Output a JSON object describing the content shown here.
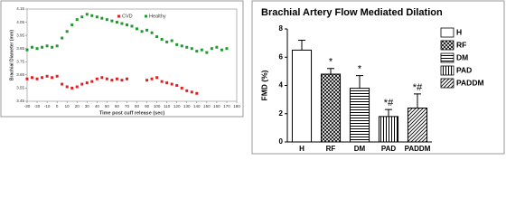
{
  "chart_data": [
    {
      "type": "scatter",
      "xlabel": "Time post cuff release (sec)",
      "ylabel": "Brachial Diameter (mm)",
      "xlim": [
        -30,
        180
      ],
      "xticks": [
        -30,
        -20,
        -10,
        0,
        10,
        20,
        30,
        40,
        50,
        60,
        70,
        80,
        90,
        100,
        110,
        120,
        130,
        140,
        150,
        160,
        170,
        180
      ],
      "ylim": [
        3.45,
        4.15
      ],
      "yticks": [
        3.45,
        3.55,
        3.65,
        3.75,
        3.85,
        3.95,
        4.05,
        4.15
      ],
      "legend": "top",
      "series": [
        {
          "name": "CVD",
          "color": "#e02020",
          "x": [
            -30,
            -25,
            -20,
            -15,
            -10,
            -5,
            0,
            5,
            10,
            15,
            20,
            25,
            30,
            35,
            40,
            45,
            50,
            55,
            60,
            65,
            70,
            90,
            95,
            100,
            105,
            110,
            115,
            120,
            125,
            130,
            135,
            140
          ],
          "values": [
            3.62,
            3.63,
            3.62,
            3.63,
            3.64,
            3.63,
            3.64,
            3.58,
            3.56,
            3.55,
            3.56,
            3.58,
            3.59,
            3.6,
            3.62,
            3.63,
            3.62,
            3.61,
            3.62,
            3.61,
            3.62,
            3.61,
            3.62,
            3.63,
            3.6,
            3.59,
            3.58,
            3.57,
            3.55,
            3.53,
            3.52,
            3.51
          ]
        },
        {
          "name": "Healthy",
          "color": "#1e9a2e",
          "x": [
            -30,
            -25,
            -20,
            -15,
            -10,
            -5,
            0,
            5,
            10,
            15,
            20,
            25,
            30,
            35,
            40,
            45,
            50,
            55,
            60,
            65,
            70,
            75,
            80,
            85,
            90,
            95,
            100,
            105,
            110,
            115,
            120,
            125,
            130,
            135,
            140,
            145,
            150,
            155,
            160,
            165,
            170
          ],
          "values": [
            3.84,
            3.86,
            3.85,
            3.86,
            3.87,
            3.86,
            3.87,
            3.93,
            3.98,
            4.03,
            4.07,
            4.09,
            4.11,
            4.1,
            4.09,
            4.08,
            4.07,
            4.06,
            4.05,
            4.04,
            4.03,
            4.02,
            4.0,
            3.98,
            3.99,
            3.97,
            3.94,
            3.92,
            3.9,
            3.91,
            3.88,
            3.87,
            3.86,
            3.85,
            3.83,
            3.84,
            3.82,
            3.85,
            3.86,
            3.84,
            3.85
          ]
        }
      ]
    },
    {
      "type": "bar",
      "title": "Brachial Artery Flow Mediated Dilation",
      "ylabel": "FMD (%)",
      "categories": [
        "H",
        "RF",
        "DM",
        "PAD",
        "PADDM"
      ],
      "values": [
        6.5,
        4.8,
        3.8,
        1.8,
        2.4
      ],
      "errors": [
        0.7,
        0.4,
        0.9,
        0.5,
        1.0
      ],
      "annotations": [
        null,
        "*",
        "*",
        "*#",
        "*#"
      ],
      "patterns": [
        "none",
        "crosshatch",
        "horizontal",
        "vertical",
        "diagonal"
      ],
      "color": "#000000",
      "ylim": [
        0,
        8
      ],
      "yticks": [
        0,
        2,
        4,
        6,
        8
      ],
      "legend": "right"
    }
  ]
}
